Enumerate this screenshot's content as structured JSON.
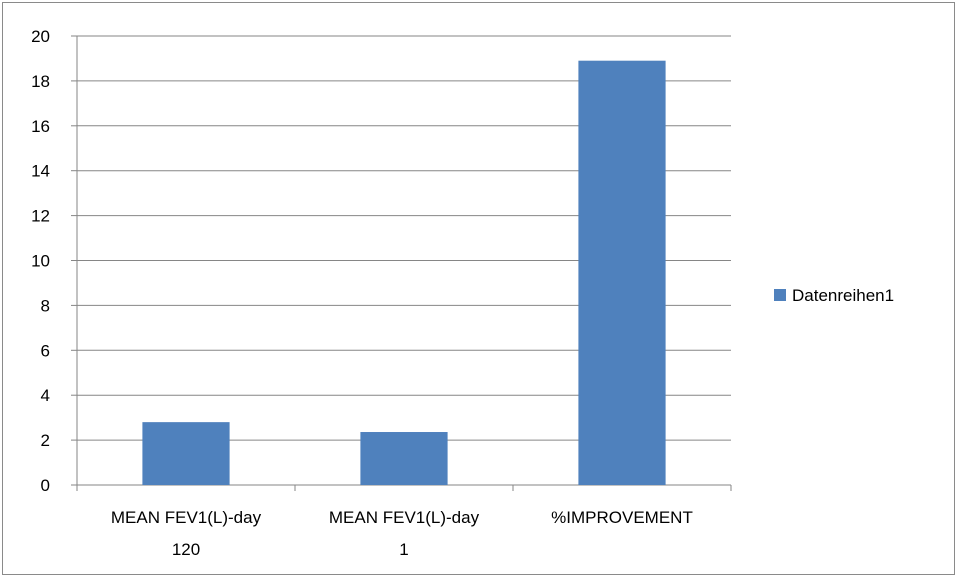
{
  "chart_data": {
    "type": "bar",
    "categories": [
      [
        "MEAN FEV1(L)-day",
        "120"
      ],
      [
        "MEAN FEV1(L)-day",
        "1"
      ],
      [
        "%IMPROVEMENT"
      ]
    ],
    "series": [
      {
        "name": "Datenreihen1",
        "values": [
          2.8,
          2.36,
          18.9
        ],
        "color": "#4f81bd"
      }
    ],
    "ylim": [
      0,
      20
    ],
    "yticks": [
      0,
      2,
      4,
      6,
      8,
      10,
      12,
      14,
      16,
      18,
      20
    ],
    "grid": true,
    "legend": "right",
    "title": "",
    "xlabel": "",
    "ylabel": ""
  }
}
